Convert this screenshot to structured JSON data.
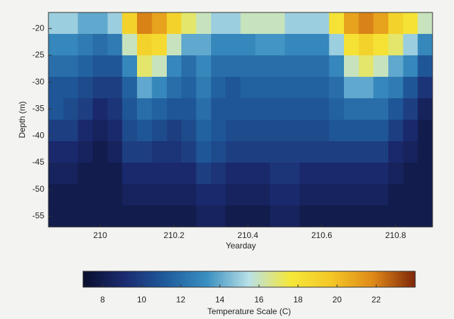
{
  "chart_data": {
    "type": "heatmap",
    "x_label": "Yearday",
    "y_label": "Depth (m)",
    "colorbar_label": "Temperature Scale (C)",
    "x": [
      209.88,
      209.92,
      209.96,
      210.0,
      210.04,
      210.08,
      210.12,
      210.16,
      210.2,
      210.24,
      210.28,
      210.32,
      210.36,
      210.4,
      210.44,
      210.48,
      210.52,
      210.56,
      210.6,
      210.64,
      210.68,
      210.72,
      210.76,
      210.8,
      210.84,
      210.88
    ],
    "y": [
      -19,
      -23,
      -27,
      -31,
      -35,
      -39,
      -43,
      -47,
      -51,
      -55
    ],
    "values": [
      [
        15,
        13,
        12,
        11,
        11,
        10,
        9,
        8.5,
        8,
        8
      ],
      [
        15,
        13,
        12,
        11,
        10.5,
        10,
        9,
        8.5,
        8,
        8
      ],
      [
        14,
        12.5,
        11.5,
        10.5,
        10,
        9,
        8.5,
        8,
        8,
        8
      ],
      [
        14,
        12,
        11,
        10,
        9,
        8.5,
        8,
        8,
        8,
        8
      ],
      [
        15,
        12.5,
        11,
        10,
        9.5,
        9,
        8.5,
        8,
        8,
        8
      ],
      [
        19,
        16,
        13,
        11.5,
        11,
        10.5,
        10,
        9,
        8.5,
        8
      ],
      [
        22,
        19,
        17,
        14,
        12,
        11,
        10,
        9,
        8.5,
        8
      ],
      [
        21,
        18.5,
        16,
        13,
        11.5,
        10.5,
        9.5,
        9,
        8.5,
        8
      ],
      [
        19,
        16,
        13,
        12,
        11,
        10,
        9.5,
        9,
        8.5,
        8
      ],
      [
        17,
        14,
        12,
        11.5,
        11,
        10.5,
        10,
        9,
        8.5,
        8
      ],
      [
        16,
        14,
        13,
        12.5,
        12,
        11.5,
        11,
        10,
        9,
        8.5
      ],
      [
        15,
        13,
        12,
        11.5,
        11,
        11,
        10.5,
        9.5,
        9,
        8.5
      ],
      [
        15,
        13,
        12,
        11,
        11,
        10.5,
        10,
        9,
        8.5,
        8
      ],
      [
        16,
        13,
        12,
        11.5,
        11,
        10.5,
        10,
        9,
        8.5,
        8
      ],
      [
        16,
        13.5,
        12,
        11.5,
        11,
        10.5,
        10,
        9,
        8.5,
        8
      ],
      [
        16,
        13.5,
        12,
        11.5,
        11,
        10.5,
        10,
        9.5,
        9,
        8.5
      ],
      [
        15,
        13,
        12,
        11.5,
        11,
        10.5,
        10,
        9.5,
        9,
        8.5
      ],
      [
        15,
        13,
        12,
        11.5,
        11,
        10.5,
        10,
        9,
        8.5,
        8
      ],
      [
        15,
        13,
        12,
        11.5,
        11,
        10.5,
        10,
        9,
        8.5,
        8
      ],
      [
        18,
        15,
        13,
        12,
        11.5,
        11,
        10,
        9,
        8.5,
        8
      ],
      [
        21,
        18,
        16,
        14,
        12,
        11,
        10,
        9,
        8.5,
        8
      ],
      [
        22,
        19,
        17,
        14,
        12,
        11,
        10,
        9,
        8.5,
        8
      ],
      [
        21,
        18,
        16,
        13,
        12,
        11,
        10,
        9,
        8.5,
        8
      ],
      [
        19,
        17,
        14,
        12.5,
        11,
        10,
        9,
        8.5,
        8,
        8
      ],
      [
        18,
        15,
        13,
        11,
        10,
        9,
        8.5,
        8,
        8,
        8
      ],
      [
        16,
        13,
        11,
        9.5,
        8.5,
        8,
        8,
        8,
        8,
        8
      ]
    ],
    "xlim": [
      209.86,
      210.9
    ],
    "ylim": [
      -17,
      -57
    ],
    "xticks": [
      210,
      210.2,
      210.4,
      210.6,
      210.8
    ],
    "yticks": [
      -20,
      -25,
      -30,
      -35,
      -40,
      -45,
      -50,
      -55
    ],
    "clim": [
      7,
      24
    ],
    "cticks": [
      8,
      10,
      12,
      14,
      16,
      18,
      20,
      22
    ],
    "colormap": [
      "#0a0f2e",
      "#1b2b70",
      "#1f5c9c",
      "#3b90c2",
      "#b9e1e6",
      "#f5e838",
      "#f4c626",
      "#de8818",
      "#7e260a"
    ]
  }
}
